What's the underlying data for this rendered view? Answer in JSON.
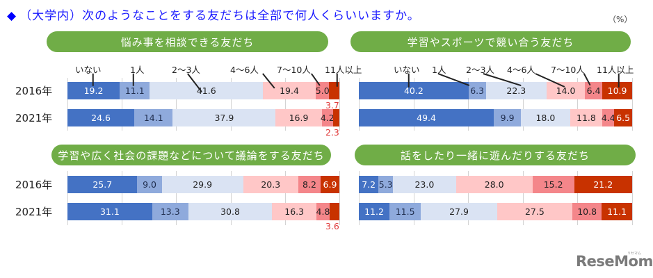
{
  "title": {
    "icon": "diamond",
    "text": "（大学内）次のようなことをする友だちは全部で何人くらいいますか。"
  },
  "unit_label": "（%）",
  "categories": [
    "いない",
    "1人",
    "2～3人",
    "4～6人",
    "7～10人",
    "11人以上"
  ],
  "colors": [
    "#4472C4",
    "#8FAADC",
    "#DAE3F3",
    "#FFC7C7",
    "#F4868A",
    "#C83200"
  ],
  "panels": [
    {
      "title": "悩み事を相談できる友だち",
      "years": [
        "2016年",
        "2021年"
      ],
      "rows": [
        {
          "year": "2016年",
          "values": [
            "19.2",
            "11.1",
            "41.6",
            "19.4",
            "5.0",
            "3.7"
          ]
        },
        {
          "year": "2021年",
          "values": [
            "24.6",
            "14.1",
            "37.9",
            "16.9",
            "4.2",
            "2.3"
          ]
        }
      ]
    },
    {
      "title": "学習やスポーツで競い合う友だち",
      "rows": [
        {
          "year": "2016年",
          "values": [
            "40.2",
            "6.3",
            "22.3",
            "14.0",
            "6.4",
            "10.9"
          ]
        },
        {
          "year": "2021年",
          "values": [
            "49.4",
            "9.9",
            "18.0",
            "11.8",
            "4.4",
            "6.5"
          ]
        }
      ]
    },
    {
      "title": "学習や広く社会の課題などについて議論をする友だち",
      "rows": [
        {
          "year": "2016年",
          "values": [
            "25.7",
            "9.0",
            "29.9",
            "20.3",
            "8.2",
            "6.9"
          ]
        },
        {
          "year": "2021年",
          "values": [
            "31.1",
            "13.3",
            "30.8",
            "16.3",
            "4.8",
            "3.6"
          ]
        }
      ]
    },
    {
      "title": "話をしたり一緒に遊んだりする友だち",
      "rows": [
        {
          "year": "2016年",
          "values": [
            "7.2",
            "5.3",
            "23.0",
            "28.0",
            "15.2",
            "21.2"
          ]
        },
        {
          "year": "2021年",
          "values": [
            "11.2",
            "11.5",
            "27.9",
            "27.5",
            "10.8",
            "11.1"
          ]
        }
      ]
    }
  ],
  "logo": {
    "text": "ReseMom",
    "sub": "リセマム"
  },
  "chart_data": [
    {
      "type": "bar",
      "stacked": true,
      "orientation": "horizontal",
      "title": "悩み事を相談できる友だち",
      "categories": [
        "2016年",
        "2021年"
      ],
      "series": [
        {
          "name": "いない",
          "values": [
            19.2,
            24.6
          ]
        },
        {
          "name": "1人",
          "values": [
            11.1,
            14.1
          ]
        },
        {
          "name": "2～3人",
          "values": [
            41.6,
            37.9
          ]
        },
        {
          "name": "4～6人",
          "values": [
            19.4,
            16.9
          ]
        },
        {
          "name": "7～10人",
          "values": [
            5.0,
            4.2
          ]
        },
        {
          "name": "11人以上",
          "values": [
            3.7,
            2.3
          ]
        }
      ],
      "xlim": [
        0,
        100
      ],
      "xlabel": "",
      "ylabel": "",
      "unit": "%",
      "grid": true
    },
    {
      "type": "bar",
      "stacked": true,
      "orientation": "horizontal",
      "title": "学習やスポーツで競い合う友だち",
      "categories": [
        "2016年",
        "2021年"
      ],
      "series": [
        {
          "name": "いない",
          "values": [
            40.2,
            49.4
          ]
        },
        {
          "name": "1人",
          "values": [
            6.3,
            9.9
          ]
        },
        {
          "name": "2～3人",
          "values": [
            22.3,
            18.0
          ]
        },
        {
          "name": "4～6人",
          "values": [
            14.0,
            11.8
          ]
        },
        {
          "name": "7～10人",
          "values": [
            6.4,
            4.4
          ]
        },
        {
          "name": "11人以上",
          "values": [
            10.9,
            6.5
          ]
        }
      ],
      "xlim": [
        0,
        100
      ],
      "xlabel": "",
      "ylabel": "",
      "unit": "%",
      "grid": true
    },
    {
      "type": "bar",
      "stacked": true,
      "orientation": "horizontal",
      "title": "学習や広く社会の課題などについて議論をする友だち",
      "categories": [
        "2016年",
        "2021年"
      ],
      "series": [
        {
          "name": "いない",
          "values": [
            25.7,
            31.1
          ]
        },
        {
          "name": "1人",
          "values": [
            9.0,
            13.3
          ]
        },
        {
          "name": "2～3人",
          "values": [
            29.9,
            30.8
          ]
        },
        {
          "name": "4～6人",
          "values": [
            20.3,
            16.3
          ]
        },
        {
          "name": "7～10人",
          "values": [
            8.2,
            4.8
          ]
        },
        {
          "name": "11人以上",
          "values": [
            6.9,
            3.6
          ]
        }
      ],
      "xlim": [
        0,
        100
      ],
      "xlabel": "",
      "ylabel": "",
      "unit": "%",
      "grid": true
    },
    {
      "type": "bar",
      "stacked": true,
      "orientation": "horizontal",
      "title": "話をしたり一緒に遊んだりする友だち",
      "categories": [
        "2016年",
        "2021年"
      ],
      "series": [
        {
          "name": "いない",
          "values": [
            7.2,
            11.2
          ]
        },
        {
          "name": "1人",
          "values": [
            5.3,
            11.5
          ]
        },
        {
          "name": "2～3人",
          "values": [
            23.0,
            27.9
          ]
        },
        {
          "name": "4～6人",
          "values": [
            28.0,
            27.5
          ]
        },
        {
          "name": "7～10人",
          "values": [
            15.2,
            10.8
          ]
        },
        {
          "name": "11人以上",
          "values": [
            21.2,
            11.1
          ]
        }
      ],
      "xlim": [
        0,
        100
      ],
      "xlabel": "",
      "ylabel": "",
      "unit": "%",
      "grid": true
    }
  ]
}
